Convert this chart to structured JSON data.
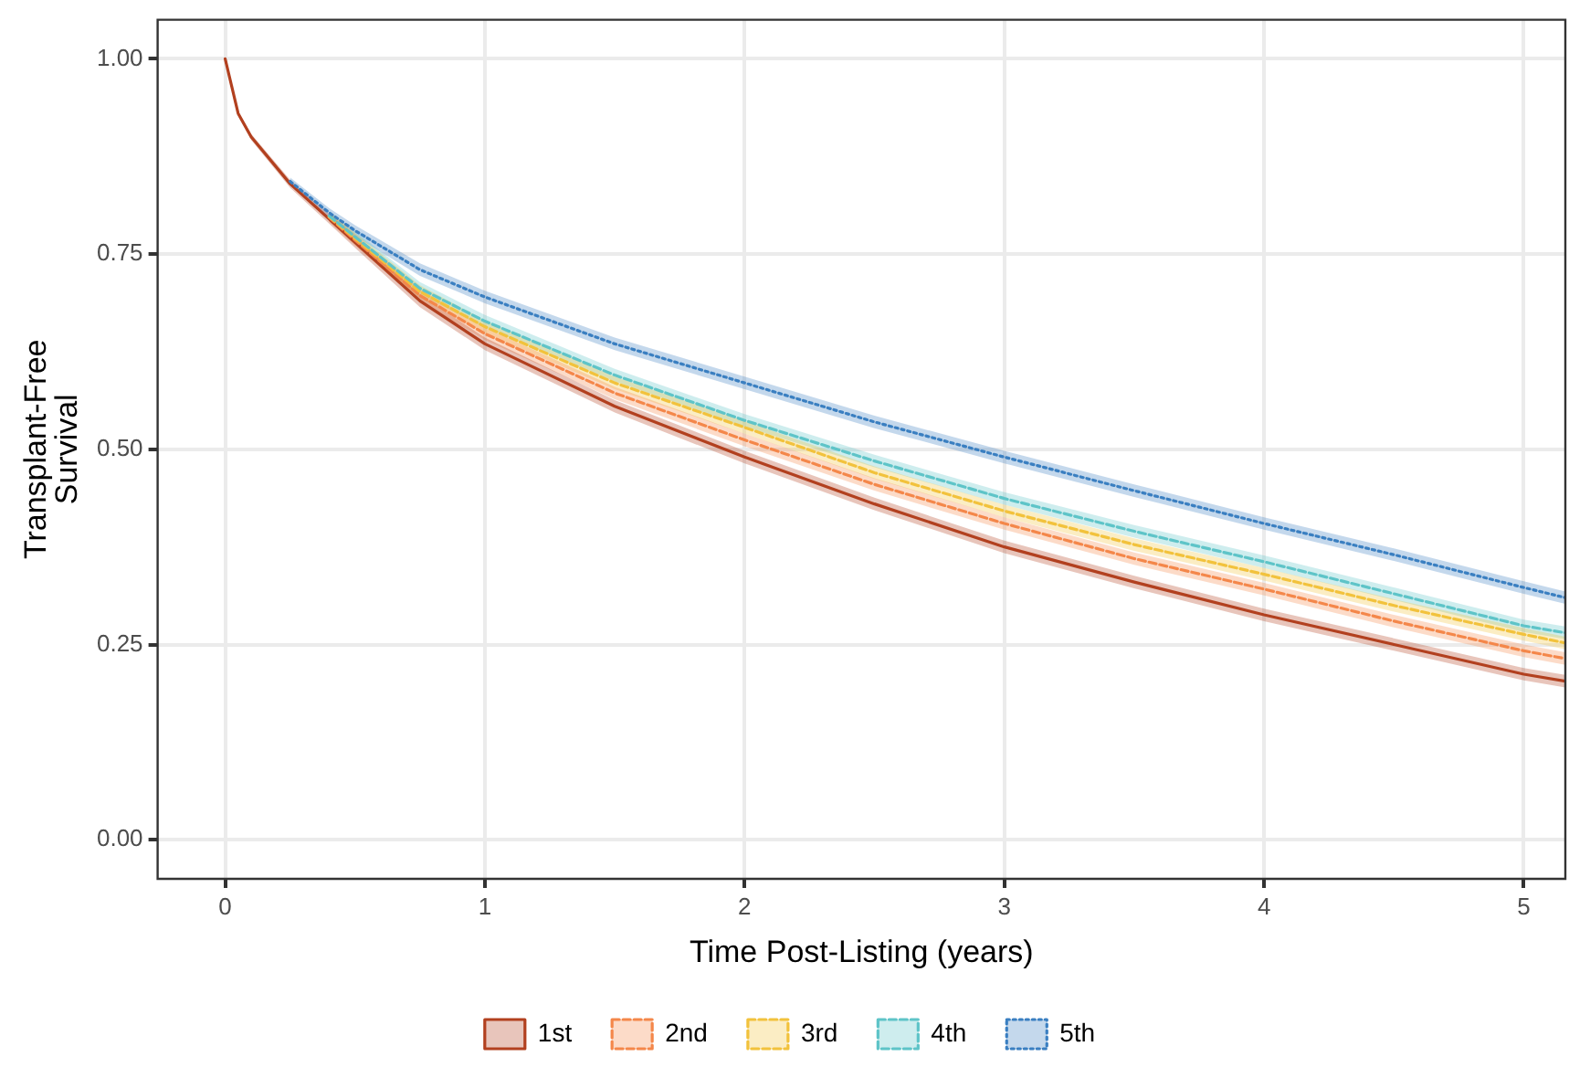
{
  "chart_data": {
    "type": "line",
    "xlabel": "Time Post-Listing (years)",
    "ylabel": "Transplant-Free Survival",
    "x": [
      0,
      0.05,
      0.1,
      0.25,
      0.4,
      0.5,
      0.75,
      1,
      1.5,
      2,
      2.5,
      3,
      3.5,
      4,
      4.5,
      5,
      5.16
    ],
    "xlim": [
      -0.26,
      5.16
    ],
    "xticks": [
      0,
      1,
      2,
      3,
      4,
      5
    ],
    "ylim": [
      -0.05,
      1.05
    ],
    "yticks": [
      {
        "value": 0,
        "label": "0.00"
      },
      {
        "value": 0.25,
        "label": "0.25"
      },
      {
        "value": 0.5,
        "label": "0.50"
      },
      {
        "value": 0.75,
        "label": "0.75"
      },
      {
        "value": 1,
        "label": "1.00"
      }
    ],
    "grid": true,
    "legend": "bottom",
    "marker": "none",
    "series": [
      {
        "name": "1st",
        "color": "#b2401f",
        "line_style": "solid",
        "values": [
          1,
          0.93,
          0.9,
          0.84,
          0.795,
          0.765,
          0.69,
          0.635,
          0.555,
          0.49,
          0.43,
          0.375,
          0.33,
          0.288,
          0.25,
          0.212,
          0.203
        ],
        "lower": [
          1,
          0.927,
          0.896,
          0.835,
          0.789,
          0.758,
          0.682,
          0.627,
          0.547,
          0.482,
          0.422,
          0.367,
          0.322,
          0.28,
          0.242,
          0.204,
          0.195
        ],
        "upper": [
          1,
          0.933,
          0.904,
          0.845,
          0.801,
          0.772,
          0.698,
          0.643,
          0.563,
          0.498,
          0.438,
          0.383,
          0.338,
          0.296,
          0.258,
          0.22,
          0.211
        ]
      },
      {
        "name": "2nd",
        "color": "#f4874a",
        "line_style": "dashed",
        "values": [
          null,
          null,
          null,
          null,
          0.797,
          0.768,
          0.697,
          0.648,
          0.572,
          0.512,
          0.455,
          0.405,
          0.36,
          0.321,
          0.28,
          0.242,
          0.232
        ],
        "lower": [
          null,
          null,
          null,
          null,
          0.791,
          0.761,
          0.689,
          0.64,
          0.564,
          0.504,
          0.447,
          0.397,
          0.352,
          0.313,
          0.272,
          0.234,
          0.224
        ],
        "upper": [
          null,
          null,
          null,
          null,
          0.803,
          0.775,
          0.705,
          0.656,
          0.58,
          0.52,
          0.463,
          0.413,
          0.368,
          0.329,
          0.288,
          0.25,
          0.24
        ]
      },
      {
        "name": "3rd",
        "color": "#f2c23c",
        "line_style": "dashed",
        "values": [
          null,
          null,
          null,
          null,
          0.798,
          0.77,
          0.702,
          0.657,
          0.585,
          0.528,
          0.47,
          0.421,
          0.378,
          0.34,
          0.3,
          0.263,
          0.252
        ],
        "lower": [
          null,
          null,
          null,
          null,
          0.792,
          0.763,
          0.694,
          0.649,
          0.577,
          0.52,
          0.462,
          0.413,
          0.37,
          0.332,
          0.292,
          0.255,
          0.244
        ],
        "upper": [
          null,
          null,
          null,
          null,
          0.804,
          0.777,
          0.71,
          0.665,
          0.593,
          0.536,
          0.478,
          0.429,
          0.386,
          0.348,
          0.308,
          0.271,
          0.26
        ]
      },
      {
        "name": "4th",
        "color": "#5ec4c8",
        "line_style": "dashed",
        "values": [
          null,
          null,
          null,
          null,
          0.799,
          0.772,
          0.706,
          0.664,
          0.595,
          0.537,
          0.485,
          0.437,
          0.395,
          0.356,
          0.315,
          0.274,
          0.265
        ],
        "lower": [
          null,
          null,
          null,
          null,
          0.793,
          0.765,
          0.698,
          0.656,
          0.587,
          0.529,
          0.477,
          0.429,
          0.387,
          0.348,
          0.307,
          0.266,
          0.257
        ],
        "upper": [
          null,
          null,
          null,
          null,
          0.805,
          0.779,
          0.714,
          0.672,
          0.603,
          0.545,
          0.493,
          0.445,
          0.403,
          0.364,
          0.323,
          0.282,
          0.273
        ]
      },
      {
        "name": "5th",
        "color": "#3a7fc1",
        "line_style": "dotted",
        "values": [
          null,
          null,
          null,
          0.843,
          0.803,
          0.78,
          0.73,
          0.695,
          0.635,
          0.585,
          0.535,
          0.49,
          0.447,
          0.405,
          0.365,
          0.323,
          0.31
        ],
        "lower": [
          null,
          null,
          null,
          0.838,
          0.797,
          0.773,
          0.722,
          0.687,
          0.627,
          0.577,
          0.527,
          0.482,
          0.439,
          0.397,
          0.357,
          0.315,
          0.302
        ],
        "upper": [
          null,
          null,
          null,
          0.848,
          0.809,
          0.787,
          0.738,
          0.703,
          0.643,
          0.593,
          0.543,
          0.498,
          0.455,
          0.413,
          0.373,
          0.331,
          0.318
        ]
      }
    ]
  }
}
